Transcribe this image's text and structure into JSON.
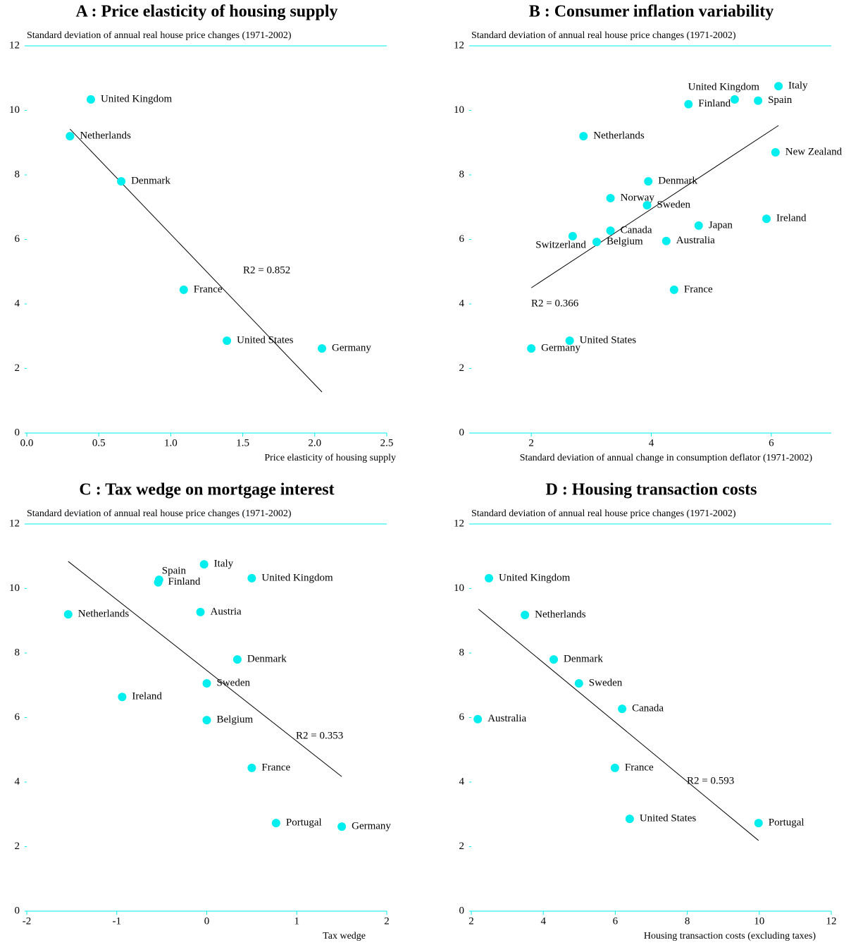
{
  "chart_data": [
    {
      "type": "scatter",
      "title": "A : Price elasticity of housing supply",
      "y_label": "Standard deviation of annual real house price changes (1971-2002)",
      "x_label": "Price elasticity of housing supply",
      "annotation": "R2 = 0.852",
      "color": "#00eeee",
      "line_color": "#000000",
      "labels": [
        "United Kingdom",
        "Netherlands",
        "Denmark",
        "France",
        "United States",
        "Germany"
      ],
      "x": [
        0.445,
        0.3,
        0.656,
        1.09,
        1.39,
        2.05
      ],
      "values": [
        10.34,
        9.2,
        7.8,
        4.44,
        2.86,
        2.62
      ],
      "fit": {
        "x": [
          0.3,
          2.05
        ],
        "y": [
          9.42,
          1.27
        ]
      },
      "xlim": [
        0,
        2.5
      ],
      "ylim": [
        0,
        12
      ],
      "xticks": [
        {
          "value": 0,
          "label": "0.0"
        },
        0.5,
        {
          "value": 1,
          "label": "1.0"
        },
        1.5,
        {
          "value": 2,
          "label": "2.0"
        },
        2.5
      ],
      "yticks": [
        0,
        2,
        4,
        6,
        8,
        10,
        12
      ]
    },
    {
      "type": "scatter",
      "title": "B : Consumer inflation variability",
      "y_label": "Standard deviation of annual real house price changes (1971-2002)",
      "x_label": "Standard deviation of annual change in consumption deflator (1971-2002)",
      "annotation": "R2 = 0.366",
      "color": "#00eeee",
      "line_color": "#000000",
      "labels": [
        "Italy",
        "United Kingdom",
        "Spain",
        "Finland",
        "Netherlands",
        "New Zealand",
        "Denmark",
        "Norway",
        "Sweden",
        "Ireland",
        "Japan",
        "Canada",
        "Switzerland",
        "Belgium",
        "Australia",
        "France",
        "United States",
        "Germany"
      ],
      "x": [
        6.12,
        5.39,
        5.78,
        4.62,
        2.87,
        6.07,
        3.95,
        3.32,
        3.93,
        5.92,
        4.79,
        3.32,
        2.69,
        3.09,
        4.25,
        4.38,
        2.64,
        2.0
      ],
      "values": [
        10.75,
        10.34,
        10.3,
        10.19,
        9.2,
        8.7,
        7.8,
        7.28,
        7.06,
        6.64,
        6.43,
        6.27,
        6.1,
        5.92,
        5.95,
        4.44,
        2.86,
        2.62
      ],
      "fit": {
        "x": [
          2.0,
          6.12
        ],
        "y": [
          4.5,
          9.53
        ]
      },
      "xlim": [
        1,
        7
      ],
      "ylim": [
        0,
        12
      ],
      "xticks": [
        2,
        4,
        6
      ],
      "yticks": [
        0,
        2,
        4,
        6,
        8,
        10,
        12
      ]
    },
    {
      "type": "scatter",
      "title": "C : Tax wedge on mortgage interest",
      "y_label": "Standard deviation of annual real house price changes (1971-2002)",
      "x_label": "Tax wedge",
      "annotation": "R2 = 0.353",
      "color": "#00eeee",
      "line_color": "#000000",
      "labels": [
        "Italy",
        "Spain",
        "Finland",
        "United Kingdom",
        "Netherlands",
        "Austria",
        "Denmark",
        "Sweden",
        "Ireland",
        "Belgium",
        "France",
        "Portugal",
        "Germany"
      ],
      "x": [
        -0.03,
        -0.53,
        -0.54,
        0.5,
        -1.54,
        -0.07,
        0.34,
        0.0,
        -0.94,
        0.0,
        0.5,
        0.77,
        1.5
      ],
      "values": [
        10.75,
        10.27,
        10.19,
        10.32,
        9.2,
        9.27,
        7.8,
        7.06,
        6.64,
        5.92,
        4.44,
        2.73,
        2.62
      ],
      "fit": {
        "x": [
          -1.54,
          1.5
        ],
        "y": [
          10.84,
          4.17
        ]
      },
      "xlim": [
        -2,
        2
      ],
      "ylim": [
        0,
        12
      ],
      "xticks": [
        -2,
        -1,
        0,
        1,
        2
      ],
      "yticks": [
        0,
        2,
        4,
        6,
        8,
        10,
        12
      ]
    },
    {
      "type": "scatter",
      "title": "D : Housing transaction costs",
      "y_label": "Standard deviation of annual real house price changes (1971-2002)",
      "x_label": "Housing transaction costs (excluding taxes)",
      "annotation": "R2 = 0.593",
      "color": "#00eeee",
      "line_color": "#000000",
      "labels": [
        "United Kingdom",
        "Netherlands",
        "Denmark",
        "Sweden",
        "Canada",
        "Australia",
        "France",
        "United States",
        "Portugal"
      ],
      "x": [
        2.49,
        3.49,
        4.29,
        4.99,
        6.19,
        2.18,
        5.99,
        6.4,
        9.98
      ],
      "values": [
        10.32,
        9.18,
        7.8,
        7.06,
        6.27,
        5.95,
        4.44,
        2.86,
        2.73
      ],
      "fit": {
        "x": [
          2.2,
          9.98
        ],
        "y": [
          9.36,
          2.19
        ]
      },
      "xlim": [
        2,
        12
      ],
      "ylim": [
        0,
        12
      ],
      "xticks": [
        2,
        4,
        6,
        8,
        10,
        12
      ],
      "yticks": [
        0,
        2,
        4,
        6,
        8,
        10,
        12
      ]
    }
  ]
}
